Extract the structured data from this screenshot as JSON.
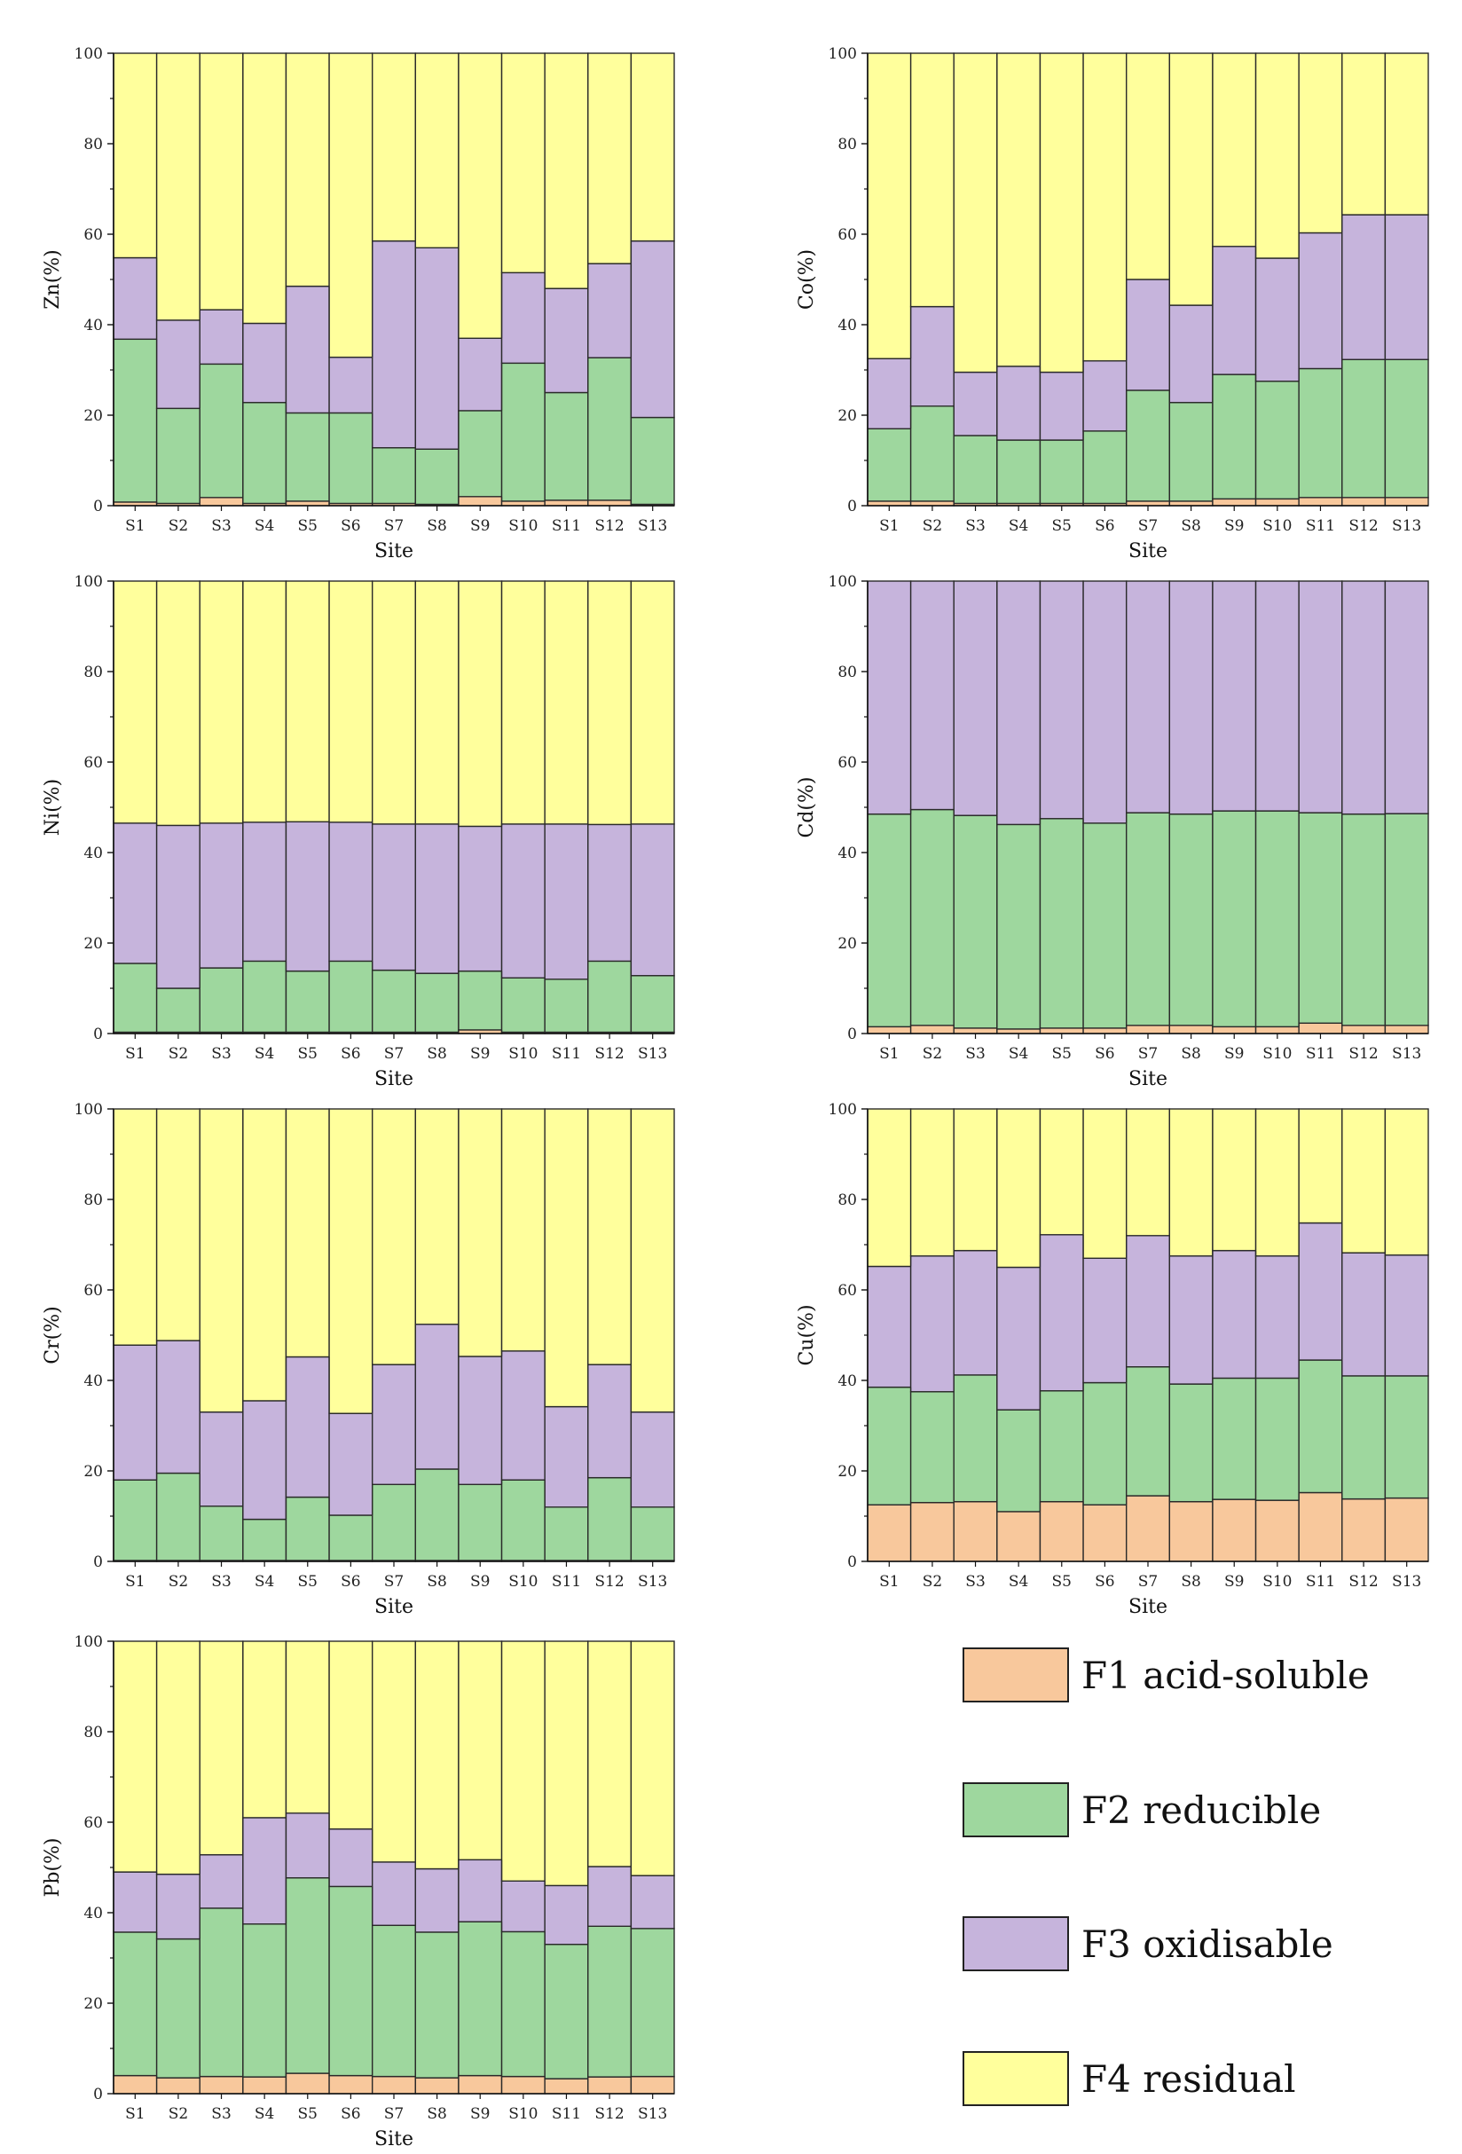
{
  "figure": {
    "x_label": "Site",
    "y_ticks": [
      0,
      20,
      40,
      60,
      80,
      100
    ],
    "legend": [
      {
        "key": "F1",
        "label": "F1 acid-soluble",
        "color": "#f8c89c"
      },
      {
        "key": "F2",
        "label": "F2 reducible",
        "color": "#9ed79e"
      },
      {
        "key": "F3",
        "label": "F3 oxidisable",
        "color": "#c6b4dc"
      },
      {
        "key": "F4",
        "label": "F4 residual",
        "color": "#ffff9c"
      }
    ]
  },
  "chart_data": [
    {
      "type": "bar",
      "stacked": true,
      "ylabel": "Zn(%)",
      "xlabel": "Site",
      "ylim": [
        0,
        100
      ],
      "categories": [
        "S1",
        "S2",
        "S3",
        "S4",
        "S5",
        "S6",
        "S7",
        "S8",
        "S9",
        "S10",
        "S11",
        "S12",
        "S13"
      ],
      "series": [
        {
          "name": "F1 acid-soluble",
          "values": [
            0.8,
            0.5,
            1.8,
            0.5,
            1.0,
            0.5,
            0.5,
            0.3,
            2.0,
            1.0,
            1.2,
            1.2,
            0.3
          ]
        },
        {
          "name": "F2 reducible",
          "values": [
            36.0,
            21.0,
            29.5,
            22.3,
            19.5,
            20.0,
            12.3,
            12.2,
            19.0,
            30.5,
            23.8,
            31.5,
            19.2
          ]
        },
        {
          "name": "F3 oxidisable",
          "values": [
            18.0,
            19.5,
            12.0,
            17.5,
            28.0,
            12.3,
            45.7,
            44.5,
            16.0,
            20.0,
            23.0,
            20.8,
            39.0
          ]
        },
        {
          "name": "F4 residual",
          "values": [
            45.2,
            59.0,
            56.7,
            59.7,
            51.5,
            67.2,
            41.5,
            43.0,
            63.0,
            48.5,
            52.0,
            46.5,
            41.5
          ]
        }
      ]
    },
    {
      "type": "bar",
      "stacked": true,
      "ylabel": "Co(%)",
      "xlabel": "Site",
      "ylim": [
        0,
        100
      ],
      "categories": [
        "S1",
        "S2",
        "S3",
        "S4",
        "S5",
        "S6",
        "S7",
        "S8",
        "S9",
        "S10",
        "S11",
        "S12",
        "S13"
      ],
      "series": [
        {
          "name": "F1 acid-soluble",
          "values": [
            1.0,
            1.0,
            0.5,
            0.5,
            0.5,
            0.5,
            1.0,
            1.0,
            1.5,
            1.5,
            1.8,
            1.8,
            1.8
          ]
        },
        {
          "name": "F2 reducible",
          "values": [
            16.0,
            21.0,
            15.0,
            14.0,
            14.0,
            16.0,
            24.5,
            21.8,
            27.5,
            26.0,
            28.5,
            30.5,
            30.5
          ]
        },
        {
          "name": "F3 oxidisable",
          "values": [
            15.5,
            22.0,
            14.0,
            16.3,
            15.0,
            15.5,
            24.5,
            21.5,
            28.3,
            27.2,
            30.0,
            32.0,
            32.0
          ]
        },
        {
          "name": "F4 residual",
          "values": [
            67.5,
            56.0,
            70.5,
            69.2,
            70.5,
            68.0,
            50.0,
            55.7,
            42.7,
            45.3,
            39.7,
            35.7,
            35.7
          ]
        }
      ]
    },
    {
      "type": "bar",
      "stacked": true,
      "ylabel": "Ni(%)",
      "xlabel": "Site",
      "ylim": [
        0,
        100
      ],
      "categories": [
        "S1",
        "S2",
        "S3",
        "S4",
        "S5",
        "S6",
        "S7",
        "S8",
        "S9",
        "S10",
        "S11",
        "S12",
        "S13"
      ],
      "series": [
        {
          "name": "F1 acid-soluble",
          "values": [
            0.3,
            0.3,
            0.3,
            0.3,
            0.3,
            0.3,
            0.3,
            0.3,
            0.8,
            0.3,
            0.3,
            0.3,
            0.3
          ]
        },
        {
          "name": "F2 reducible",
          "values": [
            15.2,
            9.7,
            14.2,
            15.7,
            13.5,
            15.7,
            13.7,
            13.0,
            13.0,
            12.0,
            11.7,
            15.7,
            12.5
          ]
        },
        {
          "name": "F3 oxidisable",
          "values": [
            31.0,
            36.0,
            32.0,
            30.7,
            33.0,
            30.7,
            32.3,
            33.0,
            32.0,
            34.0,
            34.3,
            30.2,
            33.5
          ]
        },
        {
          "name": "F4 residual",
          "values": [
            53.5,
            54.0,
            53.5,
            53.3,
            53.2,
            53.3,
            53.7,
            53.7,
            54.2,
            53.7,
            53.7,
            53.8,
            53.7
          ]
        }
      ]
    },
    {
      "type": "bar",
      "stacked": true,
      "ylabel": "Cd(%)",
      "xlabel": "Site",
      "ylim": [
        0,
        100
      ],
      "categories": [
        "S1",
        "S2",
        "S3",
        "S4",
        "S5",
        "S6",
        "S7",
        "S8",
        "S9",
        "S10",
        "S11",
        "S12",
        "S13"
      ],
      "series": [
        {
          "name": "F1 acid-soluble",
          "values": [
            1.5,
            1.8,
            1.2,
            1.0,
            1.2,
            1.2,
            1.8,
            1.8,
            1.5,
            1.5,
            2.3,
            1.8,
            1.8
          ]
        },
        {
          "name": "F2 reducible",
          "values": [
            47.0,
            47.7,
            47.0,
            45.2,
            46.3,
            45.3,
            47.0,
            46.7,
            47.7,
            47.7,
            46.5,
            46.7,
            46.8
          ]
        },
        {
          "name": "F3 oxidisable",
          "values": [
            51.5,
            50.5,
            51.8,
            53.8,
            52.5,
            53.5,
            51.2,
            51.5,
            50.8,
            50.8,
            51.2,
            51.5,
            51.4
          ]
        },
        {
          "name": "F4 residual",
          "values": [
            0,
            0,
            0,
            0,
            0,
            0,
            0,
            0,
            0,
            0,
            0,
            0,
            0
          ]
        }
      ]
    },
    {
      "type": "bar",
      "stacked": true,
      "ylabel": "Cr(%)",
      "xlabel": "Site",
      "ylim": [
        0,
        100
      ],
      "categories": [
        "S1",
        "S2",
        "S3",
        "S4",
        "S5",
        "S6",
        "S7",
        "S8",
        "S9",
        "S10",
        "S11",
        "S12",
        "S13"
      ],
      "series": [
        {
          "name": "F1 acid-soluble",
          "values": [
            0.2,
            0.2,
            0.2,
            0.2,
            0.2,
            0.2,
            0.2,
            0.2,
            0.2,
            0.2,
            0.2,
            0.2,
            0.2
          ]
        },
        {
          "name": "F2 reducible",
          "values": [
            17.8,
            19.3,
            12.0,
            9.1,
            14.0,
            10.0,
            16.8,
            20.2,
            16.8,
            17.8,
            11.8,
            18.3,
            11.8
          ]
        },
        {
          "name": "F3 oxidisable",
          "values": [
            29.8,
            29.3,
            20.8,
            26.2,
            31.0,
            22.5,
            26.5,
            32.0,
            28.3,
            28.5,
            22.2,
            25.0,
            21.0
          ]
        },
        {
          "name": "F4 residual",
          "values": [
            52.2,
            51.2,
            67.0,
            64.5,
            54.8,
            67.3,
            56.5,
            47.6,
            54.7,
            53.5,
            65.8,
            56.5,
            67.0
          ]
        }
      ]
    },
    {
      "type": "bar",
      "stacked": true,
      "ylabel": "Cu(%)",
      "xlabel": "Site",
      "ylim": [
        0,
        100
      ],
      "categories": [
        "S1",
        "S2",
        "S3",
        "S4",
        "S5",
        "S6",
        "S7",
        "S8",
        "S9",
        "S10",
        "S11",
        "S12",
        "S13"
      ],
      "series": [
        {
          "name": "F1 acid-soluble",
          "values": [
            12.5,
            13.0,
            13.2,
            11.0,
            13.2,
            12.5,
            14.5,
            13.2,
            13.7,
            13.5,
            15.2,
            13.8,
            14.0
          ]
        },
        {
          "name": "F2 reducible",
          "values": [
            26.0,
            24.5,
            28.0,
            22.5,
            24.5,
            27.0,
            28.5,
            26.0,
            26.8,
            27.0,
            29.3,
            27.2,
            27.0
          ]
        },
        {
          "name": "F3 oxidisable",
          "values": [
            26.7,
            30.0,
            27.5,
            31.5,
            34.5,
            27.5,
            29.0,
            28.3,
            28.2,
            27.0,
            30.3,
            27.2,
            26.7
          ]
        },
        {
          "name": "F4 residual",
          "values": [
            34.8,
            32.5,
            31.3,
            35.0,
            27.8,
            33.0,
            28.0,
            32.5,
            31.3,
            32.5,
            25.2,
            31.8,
            32.3
          ]
        }
      ]
    },
    {
      "type": "bar",
      "stacked": true,
      "ylabel": "Pb(%)",
      "xlabel": "Site",
      "ylim": [
        0,
        100
      ],
      "categories": [
        "S1",
        "S2",
        "S3",
        "S4",
        "S5",
        "S6",
        "S7",
        "S8",
        "S9",
        "S10",
        "S11",
        "S12",
        "S13"
      ],
      "series": [
        {
          "name": "F1 acid-soluble",
          "values": [
            4.0,
            3.5,
            3.8,
            3.7,
            4.5,
            4.0,
            3.8,
            3.5,
            4.0,
            3.8,
            3.3,
            3.7,
            3.8
          ]
        },
        {
          "name": "F2 reducible",
          "values": [
            31.7,
            30.7,
            37.2,
            33.8,
            43.2,
            41.8,
            33.4,
            32.2,
            34.0,
            32.0,
            29.7,
            33.3,
            32.7
          ]
        },
        {
          "name": "F3 oxidisable",
          "values": [
            13.3,
            14.3,
            11.8,
            23.5,
            14.3,
            12.7,
            14.0,
            14.0,
            13.7,
            11.2,
            13.0,
            13.2,
            11.7
          ]
        },
        {
          "name": "F4 residual",
          "values": [
            51.0,
            51.5,
            47.2,
            39.0,
            38.0,
            41.5,
            48.8,
            50.3,
            48.3,
            53.0,
            54.0,
            49.8,
            51.8
          ]
        }
      ]
    }
  ]
}
